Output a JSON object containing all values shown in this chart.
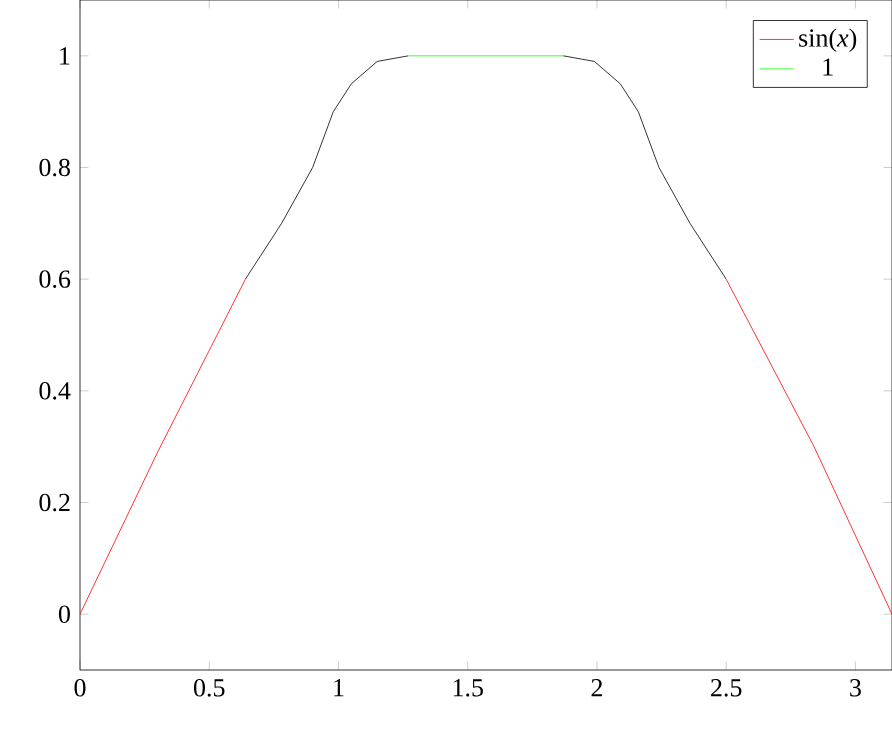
{
  "chart_data": {
    "type": "line",
    "xlim": [
      0,
      3.14159
    ],
    "ylim": [
      -0.1,
      1.1
    ],
    "xticks": [
      0,
      0.5,
      1,
      1.5,
      2,
      2.5,
      3
    ],
    "yticks": [
      0,
      0.2,
      0.4,
      0.6,
      0.8,
      1
    ],
    "legend": "top right",
    "marker": "none",
    "grid": false,
    "series": [
      {
        "color": "#000000",
        "x": [
          0.64,
          0.78,
          0.9,
          0.98,
          1.05,
          1.15,
          1.27,
          1.5,
          1.87,
          1.99,
          2.09,
          2.16,
          2.24,
          2.36,
          2.5
        ],
        "values": [
          0.6,
          0.7,
          0.8,
          0.9,
          0.95,
          0.99,
          1,
          null,
          1,
          0.99,
          0.95,
          0.9,
          0.8,
          0.7,
          0.6
        ]
      },
      {
        "name": "sin(*x*)",
        "color": "#ff0000",
        "x": [
          0,
          0.3,
          0.64,
          1.5,
          2.5,
          2.84,
          3.14159
        ],
        "values": [
          0,
          0.29,
          0.6,
          null,
          0.6,
          0.3,
          0
        ]
      },
      {
        "name": "1",
        "color": "#00ff00",
        "x": [
          1.27,
          1.87
        ],
        "values": [
          1,
          1
        ]
      }
    ]
  }
}
